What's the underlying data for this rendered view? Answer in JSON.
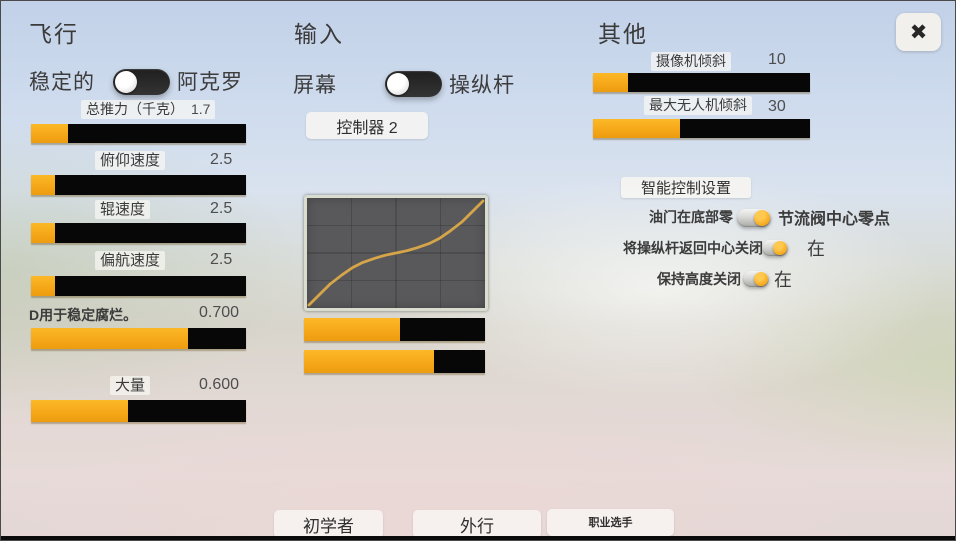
{
  "colors": {
    "accent_orange": "#F4A71D",
    "slider_track": "#070707",
    "curve_stroke": "#D6A449",
    "graph_background": "#59595B"
  },
  "window": {
    "close_icon": "✖"
  },
  "flight": {
    "title": "飞行",
    "mode_toggle": {
      "left_label": "稳定的",
      "right_label": "阿克罗",
      "state": "left"
    },
    "rows": [
      {
        "label": "总推力（千克）",
        "value": "1.7",
        "fill": 17
      },
      {
        "label": "俯仰速度",
        "value": "2.5",
        "fill": 11
      },
      {
        "label": "辊速度",
        "value": "2.5",
        "fill": 11
      },
      {
        "label": "偏航速度",
        "value": "2.5",
        "fill": 11
      },
      {
        "label": "D用于稳定腐烂。",
        "value": "0.700",
        "fill": 73
      },
      {
        "label": "大量",
        "value": "0.600",
        "fill": 45
      }
    ]
  },
  "input": {
    "title": "输入",
    "source_toggle": {
      "left_label": "屏幕",
      "right_label": "操纵杆",
      "state": "left"
    },
    "controller_button": "控制器 2",
    "curve": {
      "type": "line",
      "name": "stick-response-expo-curve",
      "points": [
        [
          0,
          0
        ],
        [
          0.06,
          0.1
        ],
        [
          0.12,
          0.2
        ],
        [
          0.19,
          0.29
        ],
        [
          0.25,
          0.36
        ],
        [
          0.31,
          0.41
        ],
        [
          0.38,
          0.45
        ],
        [
          0.44,
          0.48
        ],
        [
          0.5,
          0.5
        ],
        [
          0.56,
          0.52
        ],
        [
          0.62,
          0.55
        ],
        [
          0.69,
          0.59
        ],
        [
          0.75,
          0.64
        ],
        [
          0.81,
          0.71
        ],
        [
          0.88,
          0.8
        ],
        [
          0.94,
          0.9
        ],
        [
          1,
          1
        ]
      ]
    },
    "sliders": [
      {
        "fill": 53
      },
      {
        "fill": 72
      }
    ]
  },
  "other": {
    "title": "其他",
    "rows": [
      {
        "label": "摄像机倾斜",
        "value": "10",
        "fill": 16
      },
      {
        "label": "最大无人机倾斜",
        "value": "30",
        "fill": 40
      }
    ],
    "smart_settings_button": "智能控制设置",
    "toggle_rows": [
      {
        "left_label": "油门在底部零",
        "right_label": "节流阀中心零点",
        "state": "right"
      },
      {
        "left_label": "将操纵杆返回中心关闭",
        "right_label": "在",
        "state": "right"
      },
      {
        "left_label": "保持高度关闭",
        "right_label": "在",
        "state": "right"
      }
    ]
  },
  "presets": [
    {
      "label": "初学者"
    },
    {
      "label": "外行"
    },
    {
      "label": "职业选手"
    }
  ]
}
